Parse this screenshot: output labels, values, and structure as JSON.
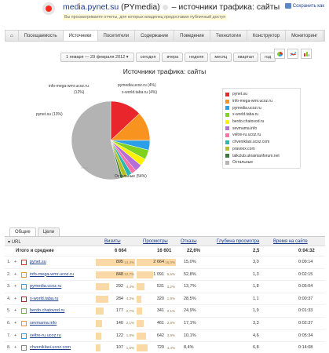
{
  "header": {
    "title_site": "media.pynet.su",
    "title_rest": "(PYmedia)",
    "title_suffix": "– источники трафика: сайты",
    "subnote": "Вы просматриваете отчеты, для которых владелец предоставил публичный доступ",
    "save_label": "Сохранить как"
  },
  "menu": [
    "Посещаемость",
    "Источники",
    "Посетители",
    "Содержание",
    "Поведение",
    "Технологии",
    "Конструктор",
    "Мониторинг"
  ],
  "menu_active": 1,
  "date_range": "1 января — 29 февраля 2012",
  "period_buttons": [
    "сегодня",
    "вчера",
    "неделя",
    "месяц",
    "квартал",
    "год"
  ],
  "chart_title": "Источники трафика: сайты",
  "chart_data": {
    "type": "pie",
    "title": "Источники трафика: сайты",
    "slices": [
      {
        "label": "pynet.su",
        "value": 13,
        "color": "#e8262b"
      },
      {
        "label": "info-mega-wmr.ucoz.ru",
        "value": 12,
        "color": "#f7931e"
      },
      {
        "label": "pymedia.ucoz.ru",
        "value": 4,
        "color": "#2b9fe8"
      },
      {
        "label": "x-world.taba.ru",
        "value": 4,
        "color": "#7fd320"
      },
      {
        "label": "berdo.chatovod.ru",
        "value": 3,
        "color": "#fff200"
      },
      {
        "label": "sevmama.info",
        "value": 3,
        "color": "#b76fd8"
      },
      {
        "label": "veltre-ru.ucoz.ru",
        "value": 2,
        "color": "#ff6fa8"
      },
      {
        "label": "chveniklasi.ucoz.com",
        "value": 2,
        "color": "#29b7b0"
      },
      {
        "label": "pravoox.com",
        "value": 2,
        "color": "#b8bf22"
      },
      {
        "label": "talkclub.ukrainianforum.net",
        "value": 1,
        "color": "#3b7a3a"
      },
      {
        "label": "Остальные",
        "value": 54,
        "color": "#b3b3b3"
      }
    ],
    "callouts": [
      {
        "text": "info-mega-wmr.ucoz.ru",
        "pct": "(12%)"
      },
      {
        "text": "pymedia.ucoz.ru (4%)"
      },
      {
        "text": "x-world.taba.ru (4%)"
      },
      {
        "text": "pynet.su (13%)"
      },
      {
        "text": "Остальные (54%)"
      }
    ]
  },
  "tabs": [
    "Общие",
    "Цели"
  ],
  "table": {
    "headers": {
      "url": "URL",
      "visits": "Визиты",
      "views": "Просмотры",
      "bounce": "Отказы",
      "depth": "Глубина просмотра",
      "time": "Время на сайте"
    },
    "totals": {
      "label": "Итого и средние",
      "visits": "6 664",
      "views": "16 601",
      "bounce": "22,6%",
      "depth": "2,5",
      "time": "0:04:32"
    },
    "rows": [
      {
        "n": "1.",
        "site": "pynet.su",
        "visits": "895",
        "vpct": "13,4%",
        "vfrac": 1.0,
        "views": "2 664",
        "wpct": "16,0%",
        "wfrac": 1.0,
        "bounce": "15,0%",
        "depth": "3,0",
        "time": "0:09:14"
      },
      {
        "n": "2.",
        "site": "info-mega-wmr.ucoz.ru",
        "visits": "848",
        "vpct": "12,7%",
        "vfrac": 0.95,
        "views": "1 091",
        "wpct": "6,6%",
        "wfrac": 0.41,
        "bounce": "52,8%",
        "depth": "1,3",
        "time": "0:02:15"
      },
      {
        "n": "3.",
        "site": "pymedia.ucoz.ru",
        "visits": "292",
        "vpct": "4,4%",
        "vfrac": 0.33,
        "views": "531",
        "wpct": "3,2%",
        "wfrac": 0.2,
        "bounce": "13,7%",
        "depth": "1,8",
        "time": "0:05:04"
      },
      {
        "n": "4.",
        "site": "x-world.taba.ru",
        "visits": "284",
        "vpct": "4,3%",
        "vfrac": 0.32,
        "views": "320",
        "wpct": "1,9%",
        "wfrac": 0.12,
        "bounce": "28,5%",
        "depth": "1,1",
        "time": "0:00:37"
      },
      {
        "n": "5.",
        "site": "berdo.chatovod.ru",
        "visits": "177",
        "vpct": "2,7%",
        "vfrac": 0.2,
        "views": "341",
        "wpct": "2,1%",
        "wfrac": 0.13,
        "bounce": "24,9%",
        "depth": "1,9",
        "time": "0:01:33"
      },
      {
        "n": "6.",
        "site": "sevmama.info",
        "visits": "140",
        "vpct": "2,1%",
        "vfrac": 0.16,
        "views": "461",
        "wpct": "2,8%",
        "wfrac": 0.17,
        "bounce": "17,1%",
        "depth": "3,3",
        "time": "0:02:37"
      },
      {
        "n": "7.",
        "site": "veltre-ru.ucoz.ru",
        "visits": "122",
        "vpct": "1,8%",
        "vfrac": 0.14,
        "views": "642",
        "wpct": "3,9%",
        "wfrac": 0.24,
        "bounce": "10,1%",
        "depth": "4,6",
        "time": "0:05:34"
      },
      {
        "n": "8.",
        "site": "chveniklasi.ucoz.com",
        "visits": "107",
        "vpct": "1,6%",
        "vfrac": 0.12,
        "views": "729",
        "wpct": "4,4%",
        "wfrac": 0.27,
        "bounce": "8,4%",
        "depth": "6,8",
        "time": "0:14:08"
      }
    ]
  }
}
